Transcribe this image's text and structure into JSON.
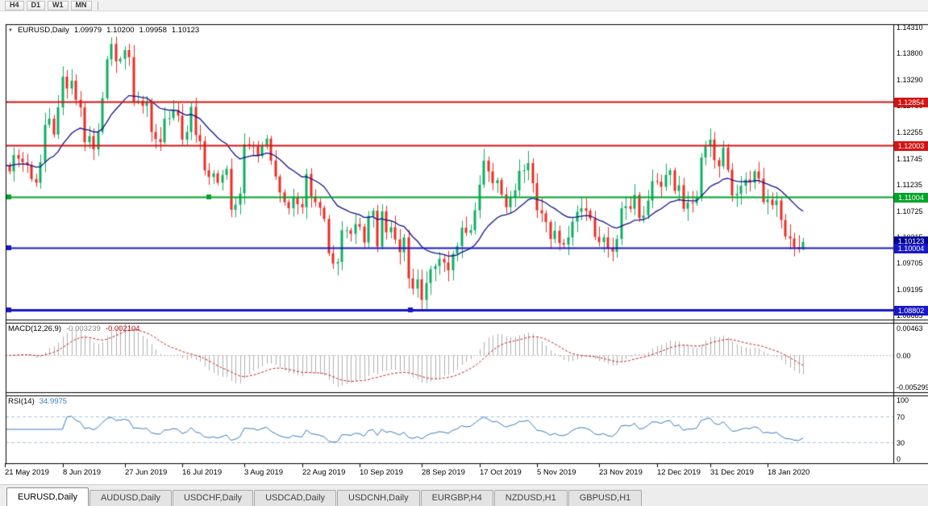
{
  "toolbar": {
    "timeframes": [
      "H4",
      "D1",
      "W1",
      "MN"
    ]
  },
  "main_title": {
    "marker": "▼",
    "symbol": "EURUSD,Daily",
    "open": "1.09979",
    "high": "1.10200",
    "low": "1.09958",
    "close": "1.10123"
  },
  "indicators": {
    "macd": {
      "name": "MACD(12,26,9)",
      "value_main": "-0.003239",
      "value_signal": "-0.002104"
    },
    "rsi": {
      "name": "RSI(14)",
      "value": "34.9975"
    }
  },
  "tabs": [
    "EURUSD,Daily",
    "AUDUSD,Daily",
    "USDCHF,Daily",
    "USDCAD,Daily",
    "USDCNH,Daily",
    "EURGBP,H4",
    "NZDUSD,H1",
    "GBPUSD,H1"
  ],
  "colors": {
    "candle_up": "#0fae62",
    "candle_down": "#ee2c24",
    "ma_line": "#12128e",
    "macd_histogram": "#b0b0b0",
    "macd_signal": "#cc2020",
    "macd_zero": "#bdbdbd",
    "rsi_line": "#3a7abf",
    "rsi_levels": "#a9c4dd",
    "current_tag": "#000096",
    "frame": "#000000",
    "pane_background": "#ffffff",
    "chrome_background": "#f0f0f0"
  },
  "chart_data": {
    "type": "candlestick",
    "symbol": "EURUSD",
    "timeframe": "Daily",
    "current_bar": {
      "open": 1.09979,
      "high": 1.102,
      "low": 1.09958,
      "close": 1.10123
    },
    "first_open": 1.119,
    "closes": [
      1.1162,
      1.115,
      1.1182,
      1.1175,
      1.1168,
      1.1162,
      1.1135,
      1.1128,
      1.1168,
      1.1241,
      1.1253,
      1.1222,
      1.1275,
      1.1335,
      1.1312,
      1.1327,
      1.129,
      1.1275,
      1.1207,
      1.1219,
      1.1193,
      1.1227,
      1.1293,
      1.1369,
      1.1399,
      1.1365,
      1.137,
      1.1387,
      1.1373,
      1.1285,
      1.1288,
      1.1278,
      1.1285,
      1.1227,
      1.1213,
      1.1207,
      1.1253,
      1.1254,
      1.127,
      1.1259,
      1.1212,
      1.1227,
      1.1276,
      1.1221,
      1.1209,
      1.1152,
      1.1139,
      1.1146,
      1.1128,
      1.1143,
      1.1155,
      1.1075,
      1.1085,
      1.1107,
      1.1203,
      1.12,
      1.1199,
      1.118,
      1.12,
      1.1214,
      1.1171,
      1.114,
      1.1109,
      1.109,
      1.1078,
      1.11,
      1.1086,
      1.108,
      1.1145,
      1.1101,
      1.109,
      1.1079,
      1.1057,
      1.099,
      1.097,
      1.0973,
      1.1035,
      1.1035,
      1.1028,
      1.1047,
      1.1042,
      1.1011,
      1.1063,
      1.1073,
      1.1003,
      1.1072,
      1.1031,
      1.1041,
      1.1017,
      1.0992,
      1.1021,
      1.0941,
      1.0921,
      1.0939,
      1.0899,
      1.0932,
      1.0959,
      1.0965,
      1.0979,
      1.0972,
      1.0957,
      1.0989,
      1.1004,
      1.104,
      1.103,
      1.1035,
      1.1074,
      1.1124,
      1.1171,
      1.115,
      1.1127,
      1.1133,
      1.1105,
      1.108,
      1.1099,
      1.1113,
      1.1151,
      1.1152,
      1.1166,
      1.1127,
      1.1074,
      1.1068,
      1.1051,
      1.1018,
      1.1034,
      1.101,
      1.1007,
      1.1021,
      1.1052,
      1.1071,
      1.1078,
      1.1073,
      1.1058,
      1.1022,
      1.1012,
      1.1021,
      1.1,
      1.0993,
      1.1018,
      1.1078,
      1.1082,
      1.1077,
      1.1104,
      1.1059,
      1.1064,
      1.1093,
      1.1131,
      1.113,
      1.112,
      1.1143,
      1.1152,
      1.1112,
      1.1123,
      1.1077,
      1.1089,
      1.1088,
      1.1098,
      1.1177,
      1.1199,
      1.1212,
      1.1172,
      1.116,
      1.1196,
      1.1153,
      1.1103,
      1.1106,
      1.1122,
      1.1134,
      1.1128,
      1.115,
      1.1136,
      1.109,
      1.1095,
      1.1084,
      1.1093,
      1.1055,
      1.1023,
      1.1019,
      1.1002,
      1.0998,
      1.10123
    ],
    "extremes": {
      "high_index": 24,
      "high": 1.1412,
      "low_index": 94,
      "low": 1.0879
    },
    "price_scale": {
      "top": 1.14375,
      "bottom": 1.08605
    },
    "price_axis": [
      {
        "label": "1.14310",
        "value": 1.1431
      },
      {
        "label": "1.13800",
        "value": 1.138
      },
      {
        "label": "1.13290",
        "value": 1.1329
      },
      {
        "label": "1.12780",
        "value": 1.1278
      },
      {
        "label": "1.12255",
        "value": 1.12255
      },
      {
        "label": "1.11745",
        "value": 1.11745
      },
      {
        "label": "1.11235",
        "value": 1.11235
      },
      {
        "label": "1.10725",
        "value": 1.10725
      },
      {
        "label": "1.10215",
        "value": 1.10215
      },
      {
        "label": "1.09705",
        "value": 1.09705
      },
      {
        "label": "1.09195",
        "value": 1.09195
      },
      {
        "label": "1.08685",
        "value": 1.08685
      }
    ],
    "levels": [
      {
        "label": "1.12854",
        "value": 1.12854,
        "color": "#d41414",
        "width": 2,
        "handles": []
      },
      {
        "label": "1.12003",
        "value": 1.12003,
        "color": "#d41414",
        "width": 2,
        "handles": []
      },
      {
        "label": "1.11004",
        "value": 1.11004,
        "color": "#00a428",
        "width": 2,
        "handles": [
          10,
          258
        ]
      },
      {
        "label": "1.10004",
        "value": 1.10004,
        "color": "#1818c8",
        "width": 2,
        "handles": [
          10
        ]
      },
      {
        "label": "1.08802",
        "value": 1.08802,
        "color": "#1818c8",
        "width": 3,
        "handles": [
          10,
          508
        ]
      }
    ],
    "current_price_tag": {
      "label": "1.10123",
      "value": 1.10123
    },
    "ma": {
      "type": "EMA",
      "period": 20
    },
    "macd": {
      "fast": 12,
      "slow": 26,
      "signal_period": 9,
      "scale_max": 0.00463,
      "scale_min": -0.005299,
      "scale_labels": [
        {
          "label": "0.00463",
          "value": 0.00463
        },
        {
          "label": "0.00",
          "value": 0
        },
        {
          "label": "-0.005299",
          "value": -0.005299
        }
      ]
    },
    "rsi": {
      "period": 14,
      "levels": [
        70,
        30
      ],
      "scale_labels": [
        {
          "label": "100",
          "value": 100
        },
        {
          "label": "70",
          "value": 70
        },
        {
          "label": "30",
          "value": 30
        },
        {
          "label": "0",
          "value": 0
        }
      ]
    },
    "x_labels": [
      {
        "label": "21 May 2019",
        "index": 0
      },
      {
        "label": "8 Jun 2019",
        "index": 13
      },
      {
        "label": "27 Jun 2019",
        "index": 27
      },
      {
        "label": "16 Jul 2019",
        "index": 40
      },
      {
        "label": "3 Aug 2019",
        "index": 54
      },
      {
        "label": "22 Aug 2019",
        "index": 67
      },
      {
        "label": "10 Sep 2019",
        "index": 80
      },
      {
        "label": "28 Sep 2019",
        "index": 94
      },
      {
        "label": "17 Oct 2019",
        "index": 107
      },
      {
        "label": "5 Nov 2019",
        "index": 120
      },
      {
        "label": "23 Nov 2019",
        "index": 134
      },
      {
        "label": "12 Dec 2019",
        "index": 147
      },
      {
        "label": "31 Dec 2019",
        "index": 159
      },
      {
        "label": "18 Jan 2020",
        "index": 172
      }
    ]
  }
}
